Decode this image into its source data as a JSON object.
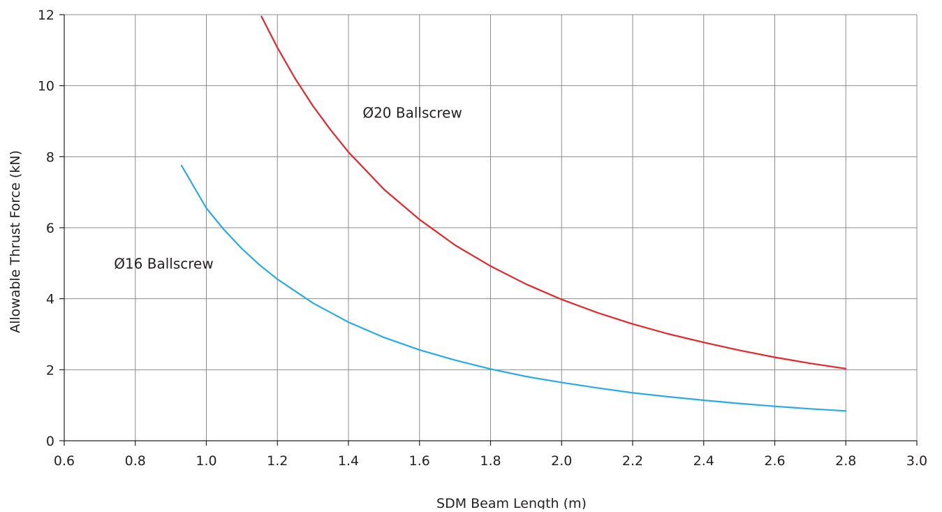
{
  "chart_data": {
    "type": "line",
    "title": "",
    "xlabel": "SDM Beam Length (m)",
    "ylabel": "Allowable Thrust Force (kN)",
    "xlim": [
      0.6,
      3.0
    ],
    "ylim": [
      0,
      12
    ],
    "xticks": [
      0.6,
      0.8,
      1.0,
      1.2,
      1.4,
      1.6,
      1.8,
      2.0,
      2.2,
      2.4,
      2.6,
      2.8,
      3.0
    ],
    "xtick_labels": [
      "0.6",
      "0.8",
      "1.0",
      "1.2",
      "1.4",
      "1.6",
      "1.8",
      "2.0",
      "2.2",
      "2.4",
      "2.6",
      "2.8",
      "3.0"
    ],
    "yticks": [
      0,
      2,
      4,
      6,
      8,
      10,
      12
    ],
    "ytick_labels": [
      "0",
      "2",
      "4",
      "6",
      "8",
      "10",
      "12"
    ],
    "grid": true,
    "legend": "none",
    "series": [
      {
        "label": "Ø16 Ballscrew",
        "color": "#29abe2",
        "label_anchor": {
          "x": 0.74,
          "y": 4.85
        },
        "x": [
          0.93,
          0.95,
          1.0,
          1.05,
          1.1,
          1.15,
          1.2,
          1.3,
          1.4,
          1.5,
          1.6,
          1.7,
          1.8,
          1.9,
          2.0,
          2.1,
          2.2,
          2.3,
          2.4,
          2.5,
          2.6,
          2.7,
          2.8
        ],
        "y": [
          7.75,
          7.41,
          6.55,
          5.94,
          5.41,
          4.95,
          4.55,
          3.88,
          3.34,
          2.91,
          2.56,
          2.27,
          2.02,
          1.81,
          1.64,
          1.49,
          1.35,
          1.24,
          1.14,
          1.05,
          0.97,
          0.9,
          0.84
        ]
      },
      {
        "label": "Ø20 Ballscrew",
        "color": "#e3262b",
        "label_anchor": {
          "x": 1.44,
          "y": 9.1
        },
        "x": [
          1.155,
          1.2,
          1.25,
          1.3,
          1.35,
          1.4,
          1.5,
          1.6,
          1.7,
          1.8,
          1.9,
          2.0,
          2.1,
          2.2,
          2.3,
          2.4,
          2.5,
          2.6,
          2.7,
          2.8
        ],
        "y": [
          11.95,
          11.07,
          10.2,
          9.43,
          8.75,
          8.13,
          7.08,
          6.23,
          5.51,
          4.92,
          4.41,
          3.98,
          3.61,
          3.29,
          3.01,
          2.77,
          2.55,
          2.35,
          2.18,
          2.03
        ]
      }
    ]
  }
}
